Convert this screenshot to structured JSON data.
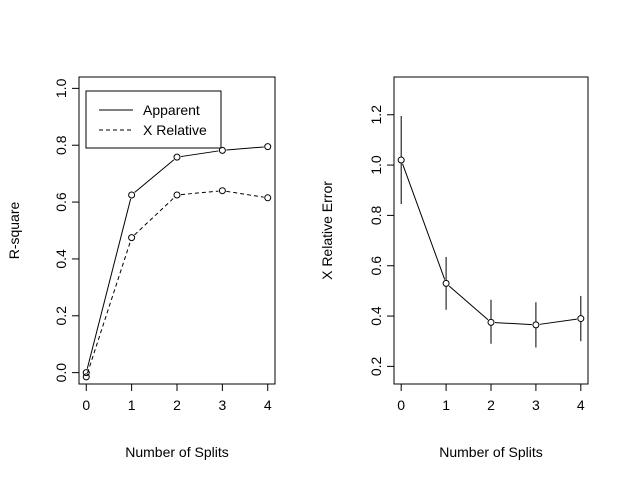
{
  "chart_data": [
    {
      "type": "line",
      "xlabel": "Number of Splits",
      "ylabel": "R-square",
      "x": [
        0,
        1,
        2,
        3,
        4
      ],
      "xticks": [
        "0",
        "1",
        "2",
        "3",
        "4"
      ],
      "yticks": [
        "0.0",
        "0.2",
        "0.4",
        "0.6",
        "0.8",
        "1.0"
      ],
      "xlim": [
        -0.16,
        4.16
      ],
      "ylim": [
        -0.04,
        1.04
      ],
      "legend_position": "top-left",
      "series": [
        {
          "name": "Apparent",
          "style": "solid",
          "values": [
            0.0,
            0.625,
            0.758,
            0.782,
            0.795
          ]
        },
        {
          "name": "X Relative",
          "style": "dashed",
          "values": [
            -0.015,
            0.475,
            0.625,
            0.64,
            0.615
          ]
        }
      ]
    },
    {
      "type": "line",
      "xlabel": "Number of Splits",
      "ylabel": "X Relative Error",
      "x": [
        0,
        1,
        2,
        3,
        4
      ],
      "xticks": [
        "0",
        "1",
        "2",
        "3",
        "4"
      ],
      "yticks": [
        "0.2",
        "0.4",
        "0.6",
        "0.8",
        "1.0",
        "1.2"
      ],
      "xlim": [
        -0.16,
        4.16
      ],
      "ylim": [
        0.13,
        1.35
      ],
      "series": [
        {
          "style": "solid",
          "values": [
            1.02,
            0.53,
            0.375,
            0.365,
            0.39
          ],
          "error_low": [
            0.845,
            0.425,
            0.29,
            0.275,
            0.3
          ],
          "error_high": [
            1.195,
            0.635,
            0.465,
            0.455,
            0.48
          ]
        }
      ]
    }
  ]
}
